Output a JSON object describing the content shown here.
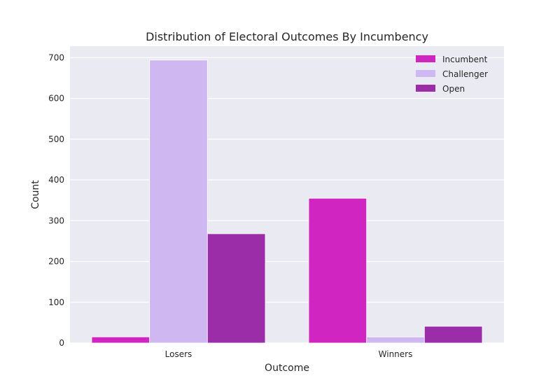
{
  "chart_data": {
    "type": "bar",
    "title": "Distribution of Electoral Outcomes By Incumbency",
    "xlabel": "Outcome",
    "ylabel": "Count",
    "categories": [
      "Losers",
      "Winners"
    ],
    "series": [
      {
        "name": "Incumbent",
        "values": [
          15,
          355
        ],
        "color": "#d125c1"
      },
      {
        "name": "Challenger",
        "values": [
          694,
          15
        ],
        "color": "#cfb7f1"
      },
      {
        "name": "Open",
        "values": [
          268,
          41
        ],
        "color": "#9b2ea8"
      }
    ],
    "ylim": [
      0,
      728
    ],
    "yticks": [
      0,
      100,
      200,
      300,
      400,
      500,
      600,
      700
    ],
    "grid": true,
    "legend_position": "top-right",
    "background_color": "#eaeaf2",
    "grid_color": "#ffffff"
  }
}
